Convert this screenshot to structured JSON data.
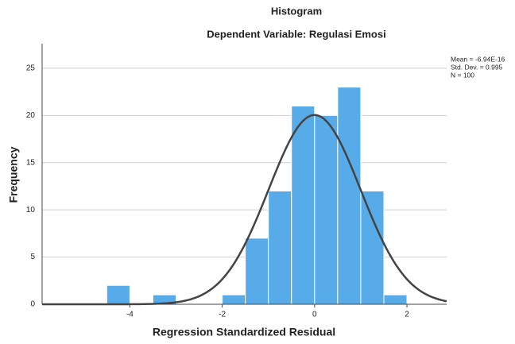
{
  "chart_data": {
    "type": "histogram",
    "title": "Histogram",
    "subtitle": "Dependent Variable: Regulasi Emosi",
    "xlabel": "Regression Standardized Residual",
    "ylabel": "Frequency",
    "bins": [
      -4.5,
      -4,
      -3.5,
      -3,
      -2.5,
      -2,
      -1.5,
      -1,
      -0.5,
      0,
      0.5,
      1,
      1.5,
      2
    ],
    "values": [
      2,
      0,
      1,
      0,
      0,
      1,
      7,
      12,
      21,
      20,
      23,
      12,
      1
    ],
    "color": "#56abe8",
    "xlim": [
      -5.9,
      2.86
    ],
    "ylim": [
      0,
      27.6
    ],
    "xticks": [
      -4,
      -2,
      0,
      2
    ],
    "yticks": [
      0,
      5,
      10,
      15,
      20,
      25
    ],
    "grid": true,
    "stats": [
      {
        "value": -6.94e-16,
        "label": "Mean = -6.94E-16"
      },
      {
        "value": 0.995,
        "label": "Std. Dev. = 0.995"
      },
      {
        "value": 100,
        "label": "N = 100"
      }
    ]
  }
}
